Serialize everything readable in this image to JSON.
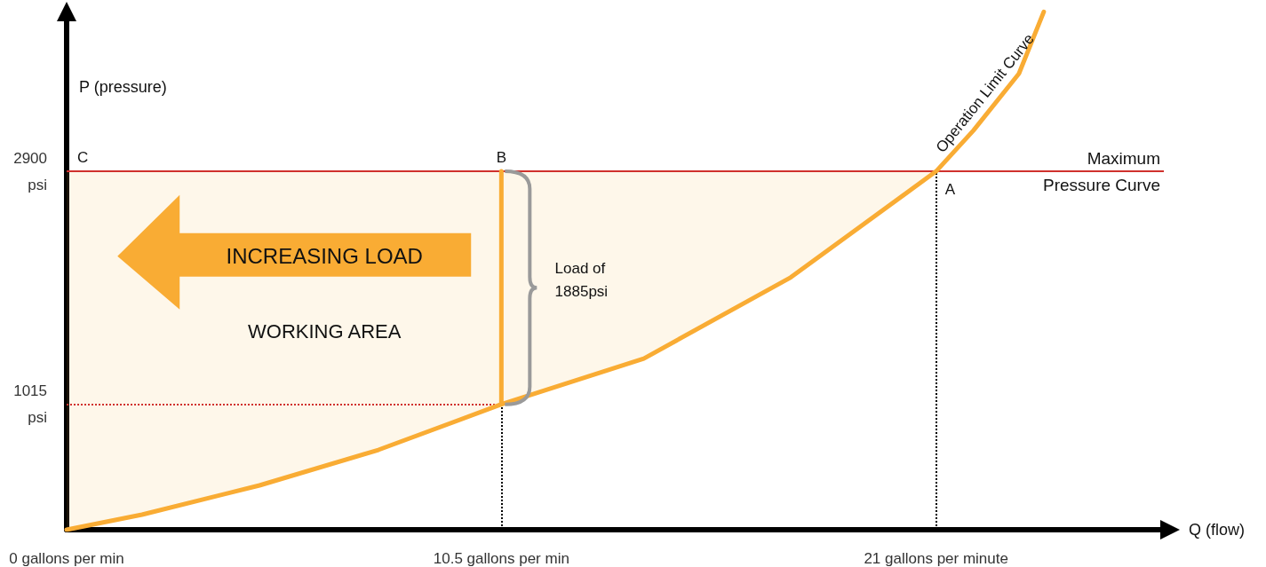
{
  "chart_data": {
    "type": "line",
    "xlabel": "Q (flow)",
    "ylabel": "P (pressure)",
    "x": [
      0,
      1.82,
      4.66,
      7.53,
      10.5,
      13.94,
      17.49,
      21,
      21.9,
      23,
      23.6
    ],
    "series": [
      {
        "name": "Operation Limit Curve",
        "color": "#f9ac34",
        "values": [
          0,
          122,
          359,
          646,
          1015,
          1385,
          2042,
          2900,
          3230,
          3690,
          4190
        ],
        "lower": [
          0,
          122,
          359,
          646,
          1015,
          1385,
          2042,
          2900,
          null,
          null,
          null
        ],
        "upper": [
          2900,
          2900,
          2900,
          2900,
          2900,
          2900,
          2900,
          2900,
          null,
          null,
          null
        ]
      },
      {
        "x": [
          10.5,
          10.5
        ],
        "color": "#f9ac34",
        "values": [
          1015,
          2900
        ]
      }
    ],
    "xlim": [
      0,
      26.5
    ],
    "ylim": [
      0,
      4200
    ],
    "xticks": [
      {
        "value": 0,
        "label": "0 gallons per min"
      },
      {
        "value": 10.5,
        "label": "10.5 gallons per min"
      },
      {
        "value": 21,
        "label": "21 gallons per minute"
      }
    ],
    "yticks": [
      {
        "value": 1015,
        "label": "1015 psi"
      },
      {
        "value": 2900,
        "label": "2900 psi"
      }
    ],
    "ref_lines": [
      {
        "axis": "y",
        "value": 2900,
        "label": "Maximum Pressure Curve",
        "color": "#d0312d",
        "line_style": "solid"
      },
      {
        "axis": "y",
        "value": 1015,
        "color": "#d0312d",
        "line_style": "dotted"
      },
      {
        "axis": "x",
        "value": 10.5,
        "color": "#000000",
        "line_style": "dotted"
      },
      {
        "axis": "x",
        "value": 21,
        "color": "#000000",
        "line_style": "dotted"
      }
    ],
    "annotations": [
      {
        "text": "C",
        "x": 0,
        "y": 2900
      },
      {
        "text": "B",
        "x": 10.5,
        "y": 2900
      },
      {
        "text": "A",
        "x": 21,
        "y": 2900
      },
      "Load of 1885psi",
      "INCREASING LOAD",
      "WORKING AREA"
    ],
    "marker": "none",
    "line_style": "solid",
    "legend": false,
    "grid": false
  }
}
